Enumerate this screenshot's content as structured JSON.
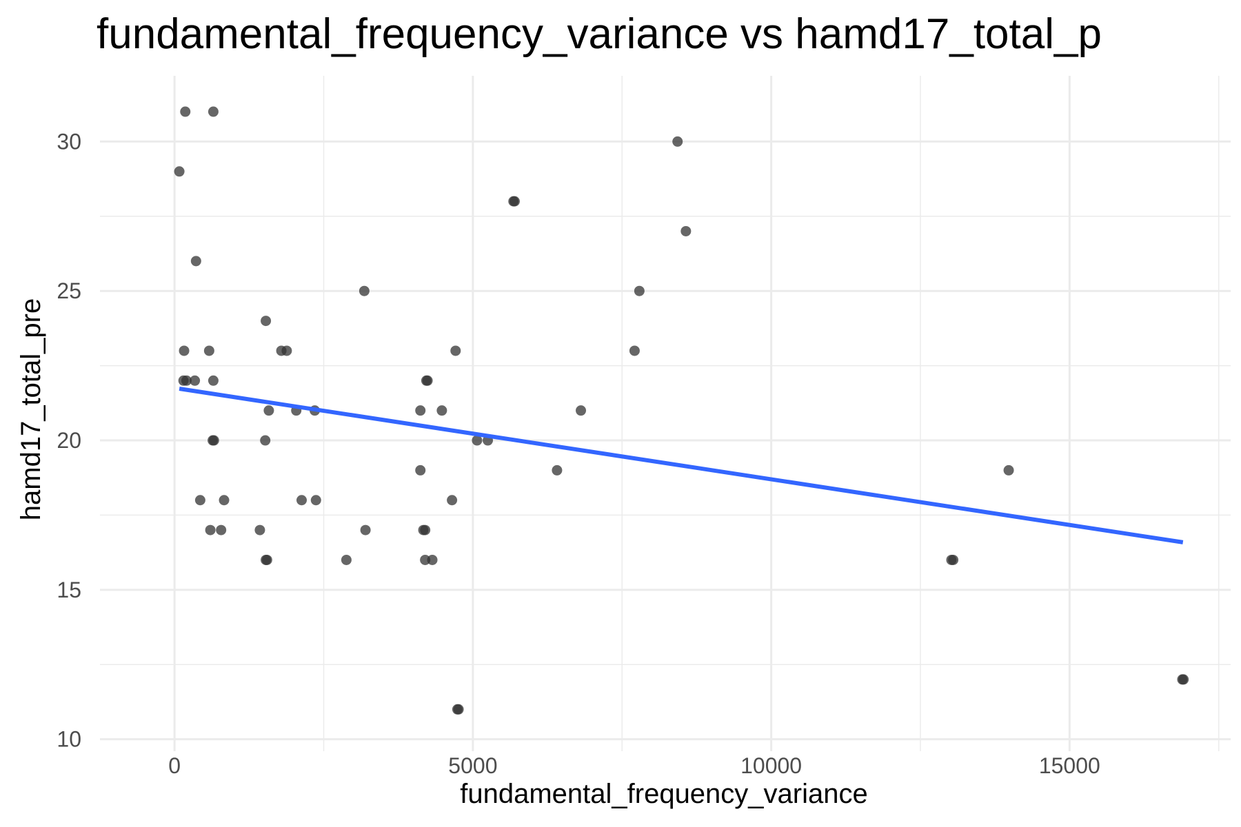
{
  "chart_data": {
    "type": "scatter",
    "title": "fundamental_frequency_variance vs hamd17_total_p",
    "xlabel": "fundamental_frequency_variance",
    "ylabel": "hamd17_total_pre",
    "xlim": [
      -1250,
      17700
    ],
    "ylim": [
      9.6,
      32.2
    ],
    "x_ticks": [
      0,
      5000,
      10000,
      15000
    ],
    "y_ticks": [
      10,
      15,
      20,
      25,
      30
    ],
    "grid": true,
    "points": [
      {
        "x": 80,
        "y": 29
      },
      {
        "x": 180,
        "y": 31
      },
      {
        "x": 650,
        "y": 31
      },
      {
        "x": 360,
        "y": 26
      },
      {
        "x": 160,
        "y": 23
      },
      {
        "x": 580,
        "y": 23
      },
      {
        "x": 150,
        "y": 22
      },
      {
        "x": 200,
        "y": 22
      },
      {
        "x": 340,
        "y": 22
      },
      {
        "x": 650,
        "y": 22
      },
      {
        "x": 640,
        "y": 20
      },
      {
        "x": 660,
        "y": 20
      },
      {
        "x": 430,
        "y": 18
      },
      {
        "x": 830,
        "y": 18
      },
      {
        "x": 600,
        "y": 17
      },
      {
        "x": 780,
        "y": 17
      },
      {
        "x": 1530,
        "y": 24
      },
      {
        "x": 1520,
        "y": 20
      },
      {
        "x": 1580,
        "y": 21
      },
      {
        "x": 1790,
        "y": 23
      },
      {
        "x": 1880,
        "y": 23
      },
      {
        "x": 2040,
        "y": 21
      },
      {
        "x": 2350,
        "y": 21
      },
      {
        "x": 2130,
        "y": 18
      },
      {
        "x": 2370,
        "y": 18
      },
      {
        "x": 1430,
        "y": 17
      },
      {
        "x": 1530,
        "y": 16
      },
      {
        "x": 1550,
        "y": 16
      },
      {
        "x": 2880,
        "y": 16
      },
      {
        "x": 3180,
        "y": 25
      },
      {
        "x": 3200,
        "y": 17
      },
      {
        "x": 4120,
        "y": 21
      },
      {
        "x": 4120,
        "y": 19
      },
      {
        "x": 4220,
        "y": 22
      },
      {
        "x": 4240,
        "y": 22
      },
      {
        "x": 4170,
        "y": 17
      },
      {
        "x": 4200,
        "y": 17
      },
      {
        "x": 4200,
        "y": 16
      },
      {
        "x": 4320,
        "y": 16
      },
      {
        "x": 4480,
        "y": 21
      },
      {
        "x": 4650,
        "y": 18
      },
      {
        "x": 4710,
        "y": 23
      },
      {
        "x": 4740,
        "y": 11
      },
      {
        "x": 4760,
        "y": 11
      },
      {
        "x": 5070,
        "y": 20
      },
      {
        "x": 5250,
        "y": 20
      },
      {
        "x": 5680,
        "y": 28
      },
      {
        "x": 5700,
        "y": 28
      },
      {
        "x": 6410,
        "y": 19
      },
      {
        "x": 6810,
        "y": 21
      },
      {
        "x": 7710,
        "y": 23
      },
      {
        "x": 7790,
        "y": 25
      },
      {
        "x": 8430,
        "y": 30
      },
      {
        "x": 8570,
        "y": 27
      },
      {
        "x": 13020,
        "y": 16
      },
      {
        "x": 13050,
        "y": 16
      },
      {
        "x": 13980,
        "y": 19
      },
      {
        "x": 16890,
        "y": 12
      },
      {
        "x": 16910,
        "y": 12
      }
    ],
    "trend": {
      "x": [
        80,
        16900
      ],
      "y": [
        21.73,
        16.59
      ]
    },
    "colors": {
      "point": "#333333",
      "trend": "#3366ff",
      "grid": "#ebebeb",
      "tick_text": "#4d4d4d",
      "text": "#000000"
    }
  }
}
